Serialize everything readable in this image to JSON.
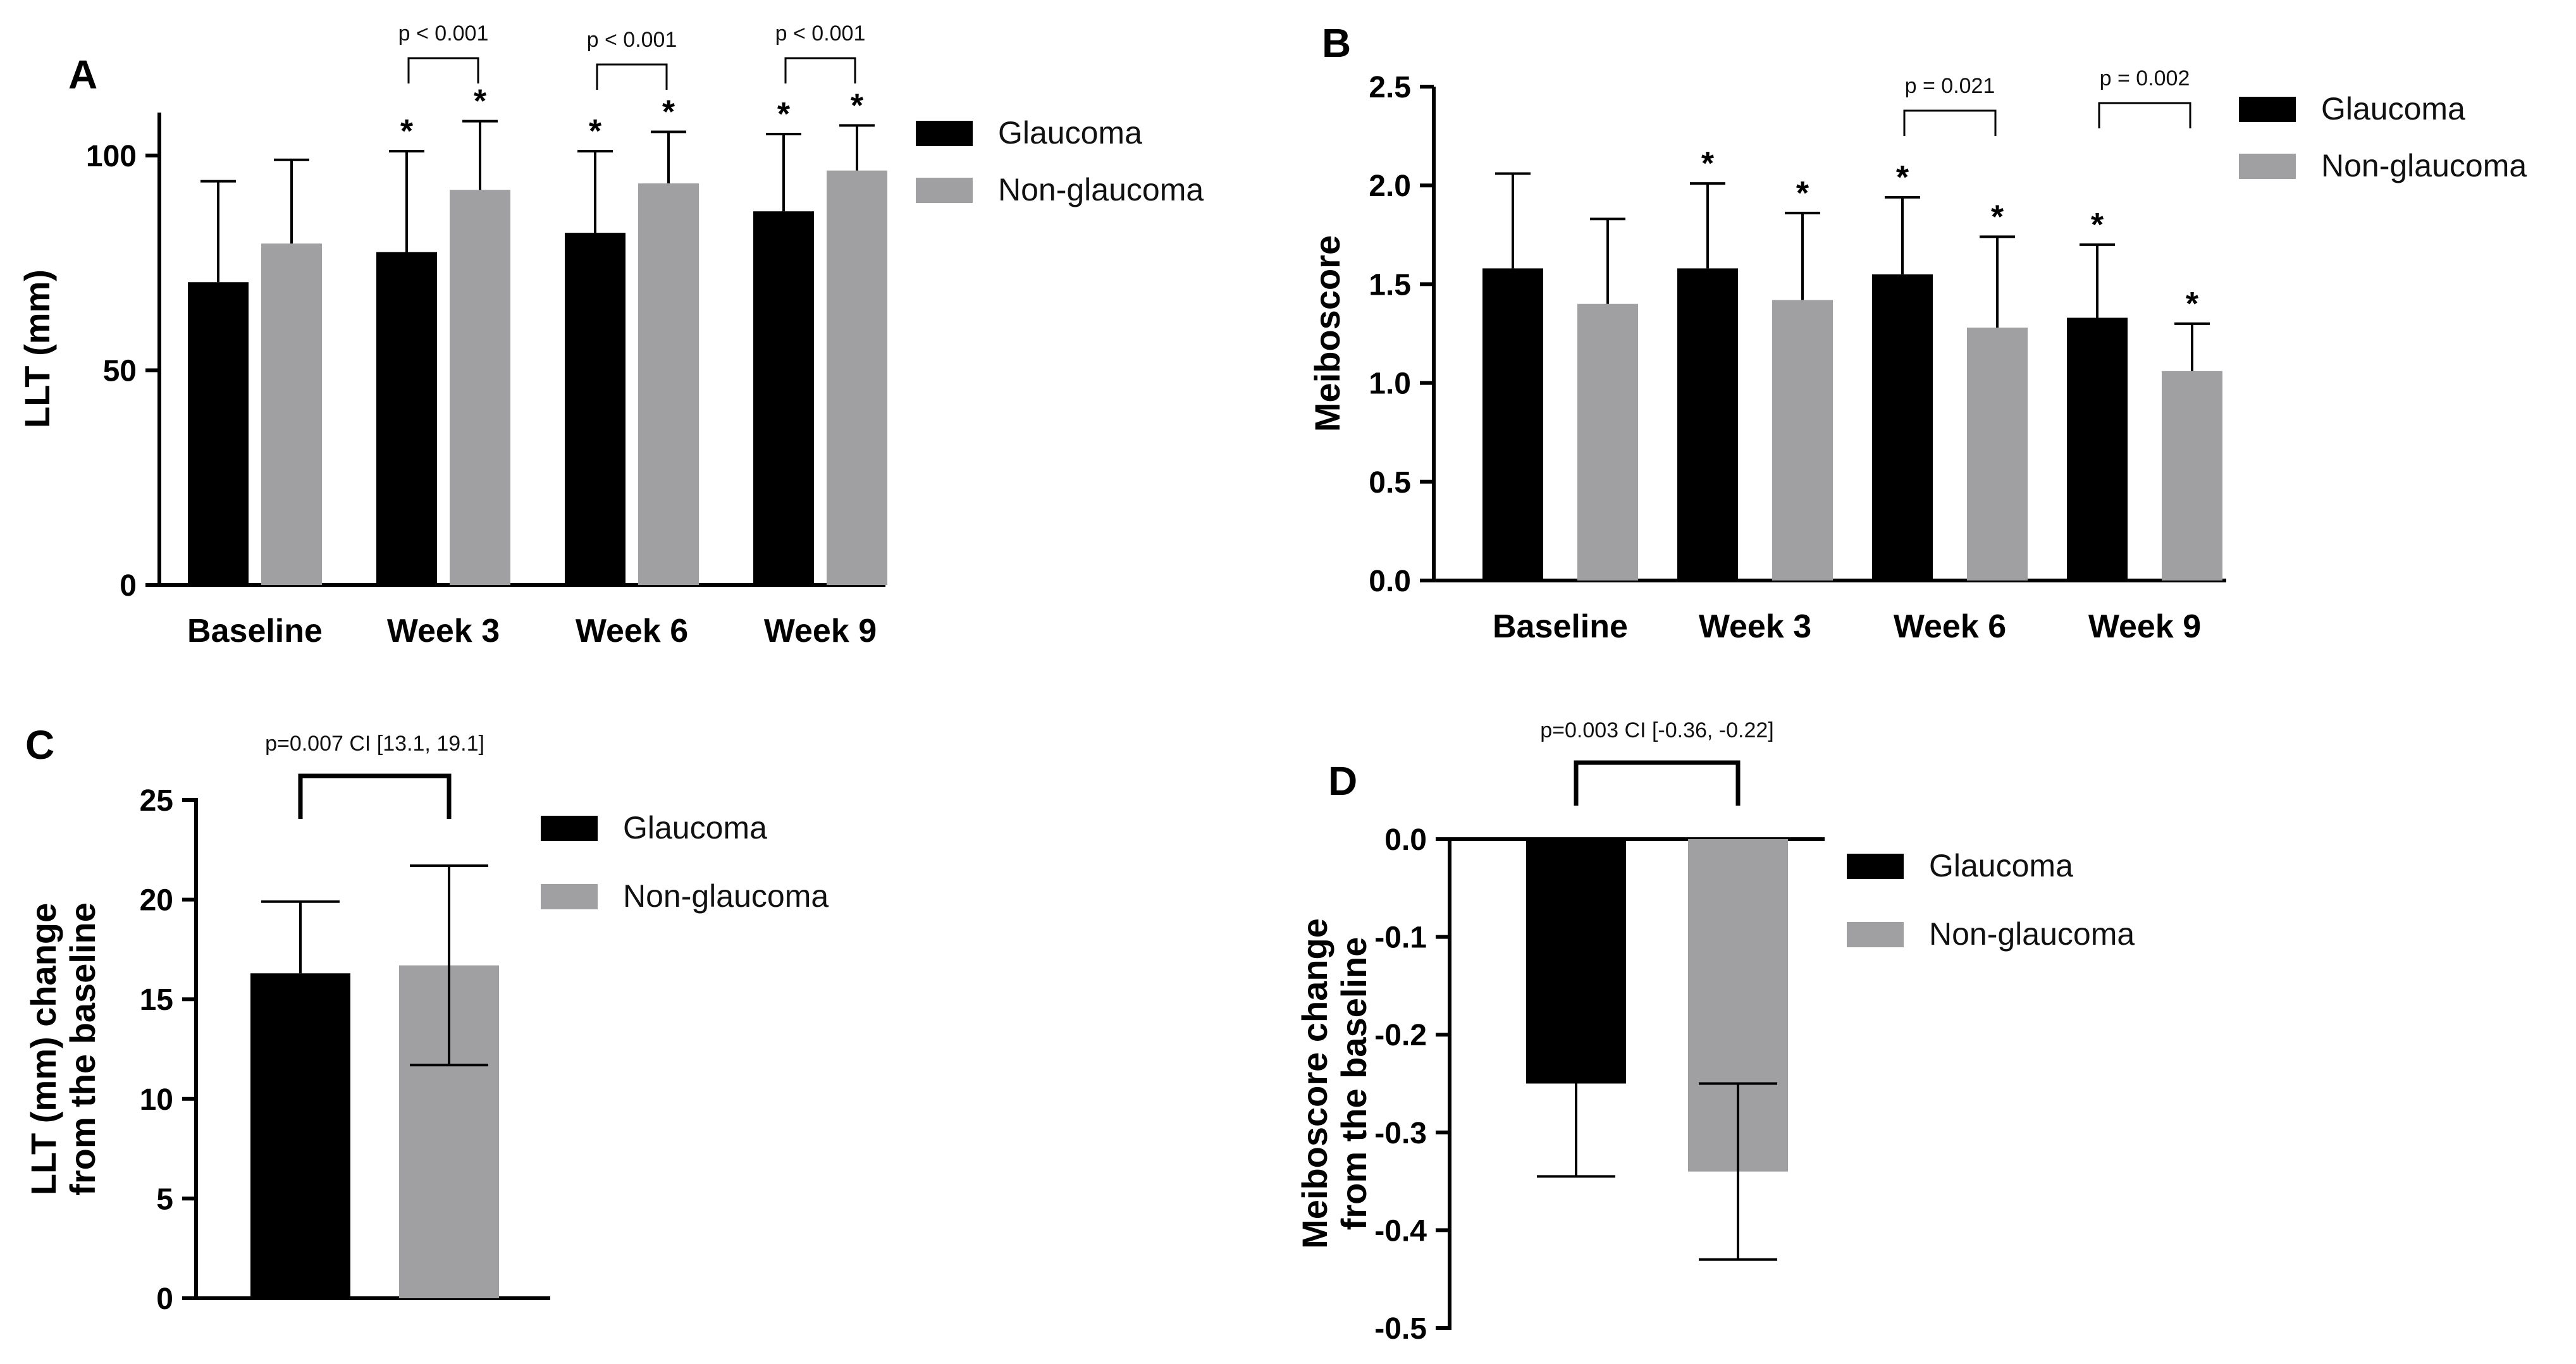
{
  "colors": {
    "glaucoma": "#000000",
    "non_glaucoma": "#a0a0a3"
  },
  "chart_data": [
    {
      "panel": "A",
      "type": "bar",
      "ylabel": "LLT (mm)",
      "xlabel": "",
      "ylim": [
        0,
        110
      ],
      "yticks": [
        0,
        50,
        100
      ],
      "categories": [
        "Baseline",
        "Week 3",
        "Week 6",
        "Week 9"
      ],
      "legend": [
        "Glaucoma",
        "Non-glaucoma"
      ],
      "series": [
        {
          "name": "Glaucoma",
          "values": [
            70.5,
            77.5,
            82,
            87
          ],
          "err": [
            94,
            101,
            101,
            105
          ]
        },
        {
          "name": "Non-glaucoma",
          "values": [
            79.5,
            92,
            93.5,
            96.5
          ],
          "err": [
            99,
            108,
            105.5,
            107
          ]
        }
      ],
      "stars": [
        [
          false,
          true,
          true,
          true
        ],
        [
          false,
          true,
          true,
          true
        ]
      ],
      "pvalues": [
        null,
        "p < 0.001",
        "p < 0.001",
        "p < 0.001"
      ]
    },
    {
      "panel": "B",
      "type": "bar",
      "ylabel": "Meiboscore",
      "xlabel": "",
      "ylim": [
        0,
        2.5
      ],
      "yticks": [
        "0.0",
        "0.5",
        "1.0",
        "1.5",
        "2.0",
        "2.5"
      ],
      "categories": [
        "Baseline",
        "Week 3",
        "Week 6",
        "Week 9"
      ],
      "legend": [
        "Glaucoma",
        "Non-glaucoma"
      ],
      "series": [
        {
          "name": "Glaucoma",
          "values": [
            1.58,
            1.58,
            1.55,
            1.33
          ],
          "err": [
            2.06,
            2.01,
            1.94,
            1.7
          ]
        },
        {
          "name": "Non-glaucoma",
          "values": [
            1.4,
            1.42,
            1.28,
            1.06
          ],
          "err": [
            1.83,
            1.86,
            1.74,
            1.3
          ]
        }
      ],
      "stars": [
        [
          false,
          true,
          true,
          true
        ],
        [
          false,
          true,
          true,
          true
        ]
      ],
      "pvalues": [
        null,
        null,
        "p = 0.021",
        "p = 0.002"
      ]
    },
    {
      "panel": "C",
      "type": "bar",
      "ylabel_lines": [
        "LLT (mm) change",
        "from the baseline"
      ],
      "xlabel": "",
      "ylim": [
        0,
        25
      ],
      "yticks": [
        0,
        5,
        10,
        15,
        20,
        25
      ],
      "categories": [
        "Glaucoma",
        "Non-glaucoma"
      ],
      "legend": [
        "Glaucoma",
        "Non-glaucoma"
      ],
      "values": [
        16.3,
        16.7
      ],
      "err_low": [
        16.3,
        11.7
      ],
      "err_high": [
        19.9,
        21.7
      ],
      "pvalue": "p=0.007 CI [13.1, 19.1]"
    },
    {
      "panel": "D",
      "type": "bar",
      "ylabel_lines": [
        "Meiboscore change",
        "from the baseline"
      ],
      "xlabel": "",
      "ylim": [
        -0.5,
        0.0
      ],
      "yticks": [
        "0.0",
        "-0.1",
        "-0.2",
        "-0.3",
        "-0.4",
        "-0.5"
      ],
      "categories": [
        "Glaucoma",
        "Non-glaucoma"
      ],
      "legend": [
        "Glaucoma",
        "Non-glaucoma"
      ],
      "values": [
        -0.25,
        -0.34
      ],
      "err_low": [
        -0.345,
        -0.43
      ],
      "err_high": [
        -0.25,
        -0.25
      ],
      "pvalue": "p=0.003 CI [-0.36, -0.22]"
    }
  ]
}
